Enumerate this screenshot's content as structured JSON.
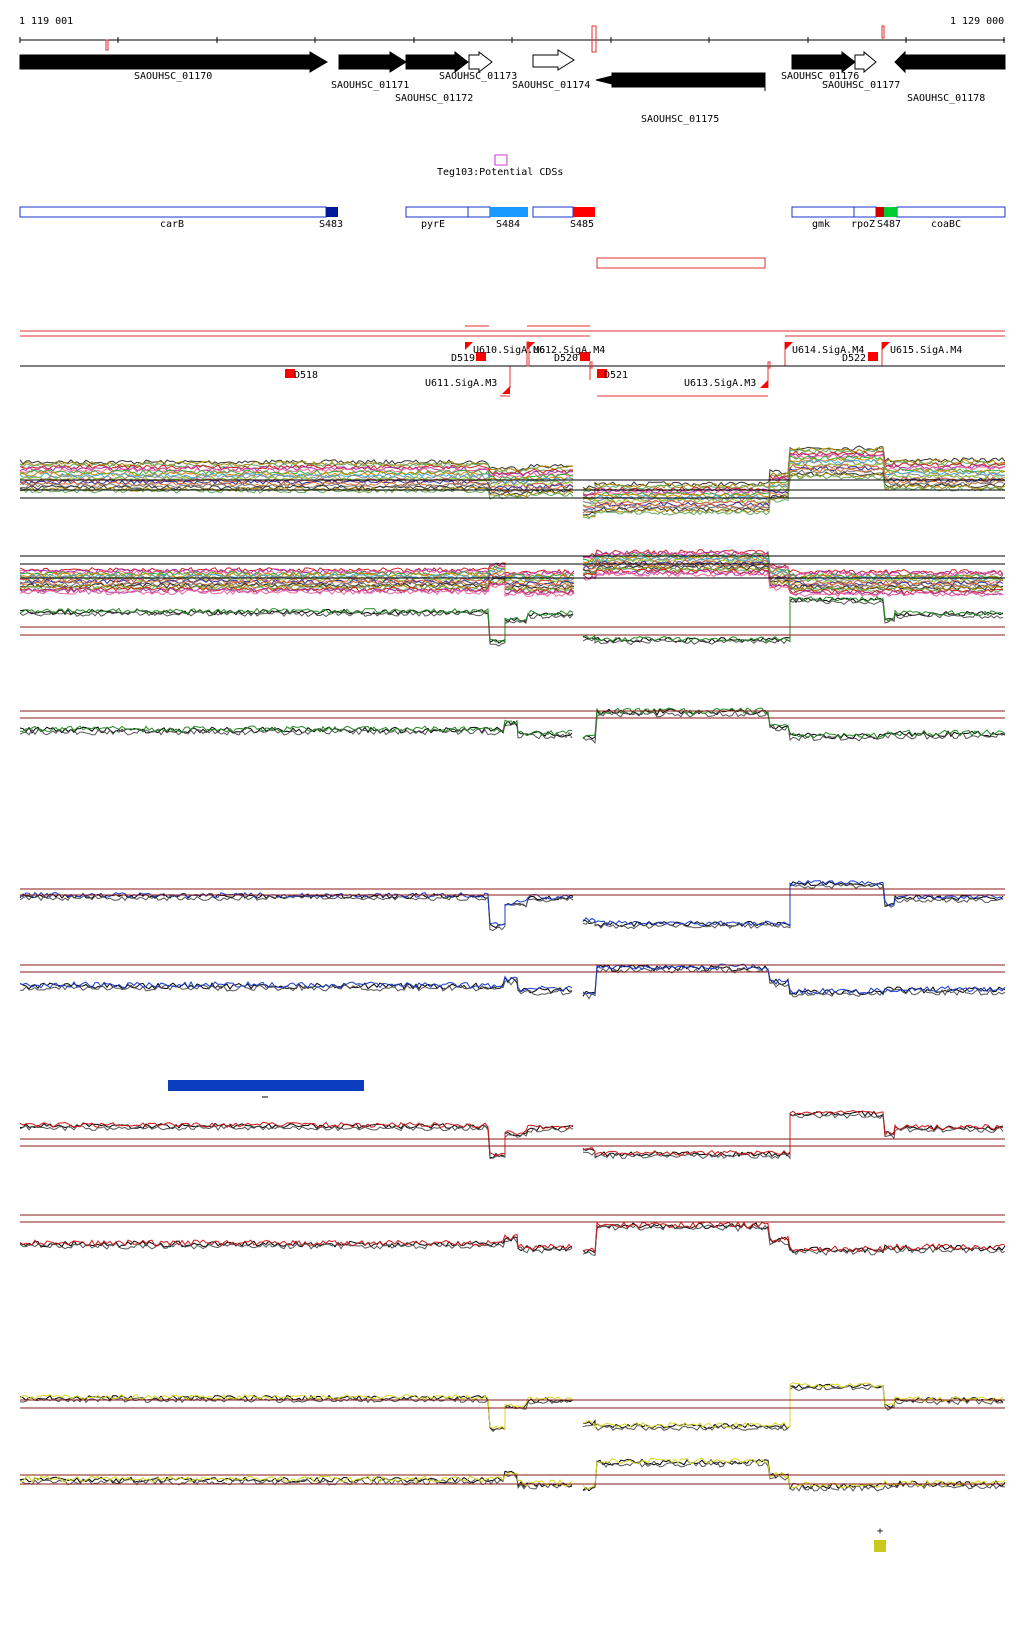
{
  "coords": {
    "start": "1 119 001",
    "end": "1 129 000"
  },
  "genes": [
    {
      "label": "SAOUHSC_01170"
    },
    {
      "label": "SAOUHSC_01171"
    },
    {
      "label": "SAOUHSC_01172"
    },
    {
      "label": "SAOUHSC_01173"
    },
    {
      "label": "SAOUHSC_01174"
    },
    {
      "label": "SAOUHSC_01175"
    },
    {
      "label": "SAOUHSC_01176"
    },
    {
      "label": "SAOUHSC_01177"
    },
    {
      "label": "SAOUHSC_01178"
    }
  ],
  "potential_cds": {
    "label": "Teg103:Potential CDSs"
  },
  "segments": [
    {
      "label": "carB"
    },
    {
      "label": "S483"
    },
    {
      "label": "pyrE"
    },
    {
      "label": "S484"
    },
    {
      "label": "S485"
    },
    {
      "label": "gmk"
    },
    {
      "label": "rpoZ"
    },
    {
      "label": "S487"
    },
    {
      "label": "coaBC"
    }
  ],
  "tus": [
    {
      "label": "U610.SigA.M6"
    },
    {
      "label": "U612.SigA.M4"
    },
    {
      "label": "U611.SigA.M3"
    },
    {
      "label": "U613.SigA.M3"
    },
    {
      "label": "U614.SigA.M4"
    },
    {
      "label": "U615.SigA.M4"
    }
  ],
  "breakpoints": [
    {
      "label": "D518"
    },
    {
      "label": "D519"
    },
    {
      "label": "D520"
    },
    {
      "label": "D521"
    },
    {
      "label": "D522"
    }
  ],
  "track_colors": {
    "multi": "#555555",
    "green": "#228b22",
    "blue": "#1a3ccf",
    "red": "#d01818",
    "yellow": "#d8d820",
    "segment_blue": "#1a66ff",
    "segment_red": "#ff0000",
    "threshold": "#8b1a1a",
    "bar_blue": "#0a3cc0"
  },
  "marker": {
    "symbol": "+"
  }
}
